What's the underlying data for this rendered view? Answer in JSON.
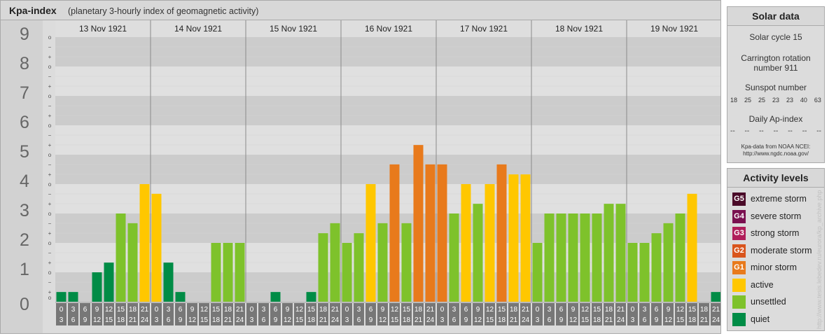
{
  "header": {
    "title": "Kpa-index",
    "subtitle": "(planetary 3-hourly index of geomagnetic activity)"
  },
  "chart_data": {
    "type": "bar",
    "title": "Kpa-index",
    "subtitle": "(planetary 3-hourly index of geomagnetic activity)",
    "ylim": [
      0,
      9
    ],
    "y_ticks": [
      "0",
      "1",
      "2",
      "3",
      "4",
      "5",
      "6",
      "7",
      "8",
      "9"
    ],
    "sub_ticks": [
      "o",
      "+",
      "−"
    ],
    "days": [
      "13 Nov 1921",
      "14 Nov 1921",
      "15 Nov 1921",
      "16 Nov 1921",
      "17 Nov 1921",
      "18 Nov 1921",
      "19 Nov 1921"
    ],
    "interval_top": [
      "0",
      "3",
      "6",
      "9",
      "12",
      "15",
      "18",
      "21"
    ],
    "interval_bottom": [
      "3",
      "6",
      "9",
      "12",
      "15",
      "18",
      "21",
      "24"
    ],
    "values": [
      [
        0.33,
        0.33,
        0.0,
        1.0,
        1.33,
        3.0,
        2.67,
        4.0
      ],
      [
        3.67,
        1.33,
        0.33,
        0.0,
        0.0,
        2.0,
        2.0,
        2.0
      ],
      [
        0.0,
        0.0,
        0.33,
        0.0,
        0.0,
        0.33,
        2.33,
        2.67
      ],
      [
        2.0,
        2.33,
        4.0,
        2.67,
        4.67,
        2.67,
        5.33,
        4.67
      ],
      [
        4.67,
        3.0,
        4.0,
        3.33,
        4.0,
        4.67,
        4.33,
        4.33
      ],
      [
        2.0,
        3.0,
        3.0,
        3.0,
        3.0,
        3.0,
        3.33,
        3.33
      ],
      [
        2.0,
        2.0,
        2.33,
        2.67,
        3.0,
        3.67,
        0.0,
        0.33
      ]
    ],
    "level_colors": {
      "quiet": "#008c46",
      "unsettled": "#7ec22b",
      "active": "#ffc700",
      "minor": "#e87a1c",
      "moderate": "#d9541c",
      "strong": "#b01e5a",
      "severe": "#7a1050",
      "extreme": "#4a0a28"
    }
  },
  "solar_data": {
    "title": "Solar data",
    "solar_cycle": "Solar cycle 15",
    "carrington_line1": "Carrington rotation",
    "carrington_line2": "number 911",
    "sunspot_label": "Sunspot number",
    "sunspot_values": [
      "18",
      "25",
      "25",
      "23",
      "23",
      "40",
      "63"
    ],
    "ap_label": "Daily Ap-index",
    "ap_values": [
      "--",
      "--",
      "--",
      "--",
      "--",
      "--",
      "--"
    ],
    "source_line1": "Kpa-data from NOAA NCEI:",
    "source_line2": "http://www.ngdc.noaa.gov/"
  },
  "activity_levels": {
    "title": "Activity levels",
    "items": [
      {
        "badge": "G5",
        "label": "extreme storm",
        "color": "#4a0a28"
      },
      {
        "badge": "G4",
        "label": "severe storm",
        "color": "#7a1050"
      },
      {
        "badge": "G3",
        "label": "strong storm",
        "color": "#b01e5a"
      },
      {
        "badge": "G2",
        "label": "moderate storm",
        "color": "#d9541c"
      },
      {
        "badge": "G1",
        "label": "minor storm",
        "color": "#e87a1c"
      },
      {
        "badge": "",
        "label": "active",
        "color": "#ffc700"
      },
      {
        "badge": "",
        "label": "unsettled",
        "color": "#7ec22b"
      },
      {
        "badge": "",
        "label": "quiet",
        "color": "#008c46"
      }
    ]
  },
  "credit": "http://www.tesis.lebedev.ru/eurora/kp_archive.php"
}
